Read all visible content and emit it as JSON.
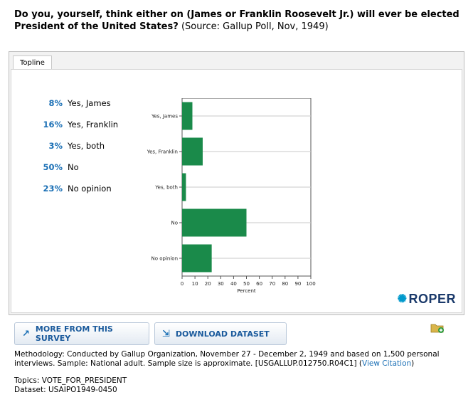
{
  "question": {
    "bold_text": "Do you, yourself, think either on (James or Franklin Roosevelt Jr.) will ever be elected President of the United States?",
    "source_text": "(Source: Gallup Poll, Nov, 1949)"
  },
  "tab_label": "Topline",
  "topline": [
    {
      "pct": "8%",
      "label": "Yes, James"
    },
    {
      "pct": "16%",
      "label": "Yes, Franklin"
    },
    {
      "pct": "3%",
      "label": "Yes, both"
    },
    {
      "pct": "50%",
      "label": "No"
    },
    {
      "pct": "23%",
      "label": "No opinion"
    }
  ],
  "chart_data": {
    "type": "bar",
    "orientation": "horizontal",
    "categories": [
      "Yes, James",
      "Yes, Franklin",
      "Yes, both",
      "No",
      "No opinion"
    ],
    "values": [
      8,
      16,
      3,
      50,
      23
    ],
    "xlabel": "Percent",
    "ylabel": "",
    "xlim": [
      0,
      100
    ],
    "xticks": [
      "0",
      "10",
      "20",
      "30",
      "40",
      "50",
      "60",
      "70",
      "80",
      "90",
      "100"
    ],
    "bar_color": "#1a8a4a",
    "grid": "horizontal category lines"
  },
  "logo_text": "ROPER",
  "buttons": {
    "more": "MORE FROM THIS SURVEY",
    "download": "DOWNLOAD DATASET"
  },
  "methodology": {
    "text": "Methodology: Conducted by Gallup Organization, November 27 - December 2, 1949 and based on 1,500 personal interviews. Sample: National adult. Sample size is approximate. [USGALLUP.012750.R04C1] (",
    "link": "View Citation",
    "tail": ")"
  },
  "topics": "Topics: VOTE_FOR_PRESIDENT",
  "dataset": "Dataset: USAIPO1949-0450"
}
